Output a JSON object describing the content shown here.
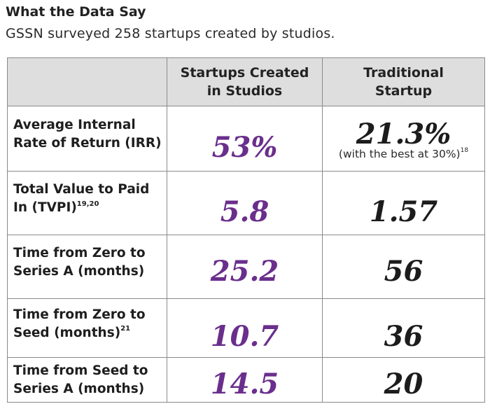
{
  "heading": {
    "title": "What the Data Say",
    "subtitle": "GSSN surveyed 258 startups created by studios."
  },
  "table": {
    "headers": {
      "blank": "",
      "studio_line1": "Startups Created",
      "studio_line2": "in Studios",
      "traditional_line1": "Traditional",
      "traditional_line2": "Startup"
    },
    "rows": [
      {
        "label_line1": "Average Internal",
        "label_line2": "Rate of Return (IRR)",
        "label_sup": "",
        "studio": "53%",
        "traditional": "21.3%",
        "traditional_note": "(with the best at 30%)",
        "traditional_note_sup": "18"
      },
      {
        "label_line1": "Total Value to Paid",
        "label_line2": "In (TVPI)",
        "label_sup": "19,20",
        "studio": "5.8",
        "traditional": "1.57"
      },
      {
        "label_line1": "Time from Zero to",
        "label_line2": "Series A (months)",
        "label_sup": "",
        "studio": "25.2",
        "traditional": "56"
      },
      {
        "label_line1": "Time from Zero to",
        "label_line2": "Seed (months)",
        "label_sup": "21",
        "studio": "10.7",
        "traditional": "36"
      },
      {
        "label_line1": "Time from Seed to",
        "label_line2": "Series A (months)",
        "label_sup": "",
        "studio": "14.5",
        "traditional": "20"
      }
    ]
  },
  "colors": {
    "studio_value": "#6a2e8c",
    "traditional_value": "#1c1c1c",
    "header_bg": "#dedede",
    "border": "#8a8a8a"
  }
}
